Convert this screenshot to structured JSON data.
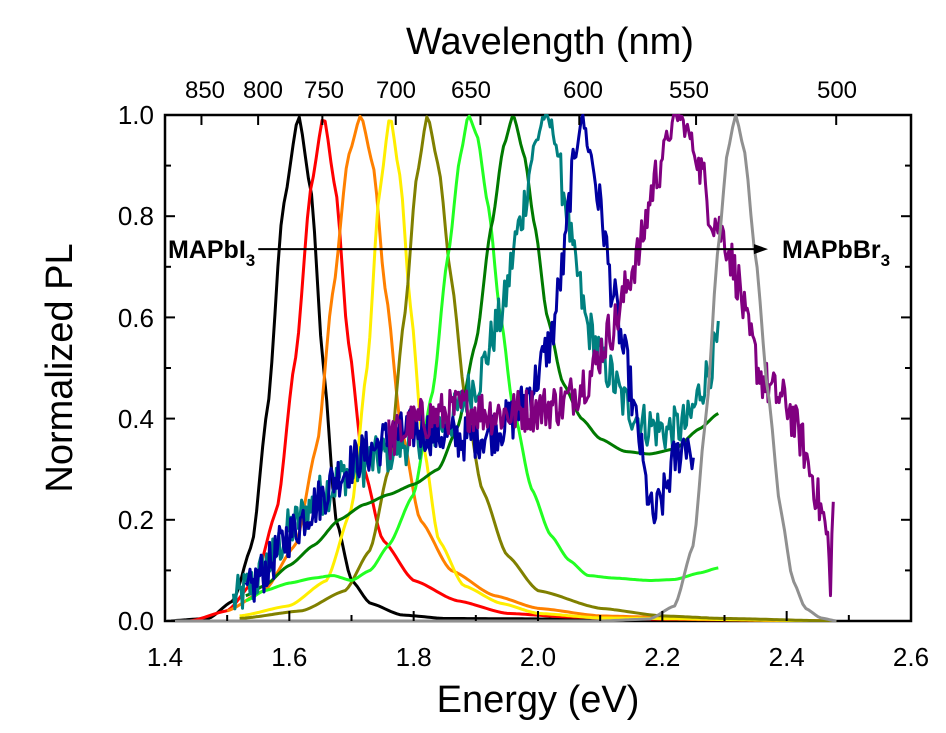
{
  "chart_data": {
    "type": "line",
    "title": "",
    "xlabel": "Energy (eV)",
    "ylabel": "Normalized PL",
    "top_xlabel": "Wavelength (nm)",
    "xlim": [
      1.4,
      2.6
    ],
    "ylim": [
      0.0,
      1.0
    ],
    "x_ticks": [
      1.4,
      1.6,
      1.8,
      2.0,
      2.2,
      2.4,
      2.6
    ],
    "x_tick_labels": [
      "1.4",
      "1.6",
      "1.8",
      "2.0",
      "2.2",
      "2.4",
      "2.6"
    ],
    "y_ticks": [
      0.0,
      0.2,
      0.4,
      0.6,
      0.8,
      1.0
    ],
    "y_tick_labels": [
      "0.0",
      "0.2",
      "0.4",
      "0.6",
      "0.8",
      "1.0"
    ],
    "wavelength_ticks": [
      850,
      800,
      750,
      700,
      650,
      600,
      550,
      500
    ],
    "wavelength_tick_labels": [
      "850",
      "800",
      "750",
      "700",
      "650",
      "600",
      "550",
      "500"
    ],
    "annotation": {
      "left": {
        "main": "MAPbI",
        "sub": "3"
      },
      "right": {
        "main": "MAPbBr",
        "sub": "3"
      },
      "y": 0.735,
      "x_start": 1.55,
      "x_end": 2.37
    },
    "series": [
      {
        "name": "black",
        "color": "#000000",
        "kind": "peak",
        "center": 1.615,
        "width_left": 0.05,
        "width_right": 0.045,
        "noise": 0,
        "points": [
          [
            1.4,
            0.0
          ],
          [
            1.47,
            0.005
          ],
          [
            1.51,
            0.04
          ],
          [
            1.54,
            0.15
          ],
          [
            1.565,
            0.42
          ],
          [
            1.59,
            0.82
          ],
          [
            1.615,
            1.0
          ],
          [
            1.635,
            0.85
          ],
          [
            1.655,
            0.5
          ],
          [
            1.675,
            0.2
          ],
          [
            1.7,
            0.08
          ],
          [
            1.73,
            0.035
          ],
          [
            1.78,
            0.012
          ],
          [
            1.85,
            0.005
          ],
          [
            2.48,
            0.0
          ]
        ]
      },
      {
        "name": "red",
        "color": "#ff0000",
        "kind": "peak",
        "points": [
          [
            1.44,
            0.0
          ],
          [
            1.5,
            0.02
          ],
          [
            1.545,
            0.08
          ],
          [
            1.58,
            0.22
          ],
          [
            1.61,
            0.52
          ],
          [
            1.635,
            0.86
          ],
          [
            1.655,
            1.0
          ],
          [
            1.675,
            0.85
          ],
          [
            1.695,
            0.55
          ],
          [
            1.72,
            0.3
          ],
          [
            1.75,
            0.16
          ],
          [
            1.8,
            0.08
          ],
          [
            1.87,
            0.04
          ],
          [
            1.95,
            0.015
          ],
          [
            2.05,
            0.008
          ],
          [
            2.15,
            0.004
          ],
          [
            2.48,
            0.0
          ]
        ]
      },
      {
        "name": "orange",
        "color": "#ff8000",
        "kind": "peak",
        "points": [
          [
            1.5,
            0.02
          ],
          [
            1.56,
            0.06
          ],
          [
            1.61,
            0.15
          ],
          [
            1.645,
            0.35
          ],
          [
            1.67,
            0.65
          ],
          [
            1.695,
            0.92
          ],
          [
            1.715,
            1.0
          ],
          [
            1.735,
            0.9
          ],
          [
            1.755,
            0.65
          ],
          [
            1.78,
            0.38
          ],
          [
            1.81,
            0.2
          ],
          [
            1.86,
            0.1
          ],
          [
            1.93,
            0.05
          ],
          [
            2.0,
            0.025
          ],
          [
            2.1,
            0.01
          ],
          [
            2.3,
            0.003
          ],
          [
            2.48,
            0.0
          ]
        ]
      },
      {
        "name": "yellow",
        "color": "#ffee00",
        "kind": "peak",
        "points": [
          [
            1.52,
            0.01
          ],
          [
            1.6,
            0.03
          ],
          [
            1.66,
            0.08
          ],
          [
            1.7,
            0.22
          ],
          [
            1.725,
            0.5
          ],
          [
            1.745,
            0.85
          ],
          [
            1.762,
            1.0
          ],
          [
            1.778,
            0.88
          ],
          [
            1.795,
            0.62
          ],
          [
            1.815,
            0.35
          ],
          [
            1.84,
            0.16
          ],
          [
            1.88,
            0.07
          ],
          [
            1.94,
            0.035
          ],
          [
            2.0,
            0.015
          ],
          [
            2.1,
            0.006
          ],
          [
            2.48,
            0.0
          ]
        ]
      },
      {
        "name": "olive",
        "color": "#808000",
        "kind": "peak",
        "points": [
          [
            1.52,
            0.005
          ],
          [
            1.62,
            0.02
          ],
          [
            1.69,
            0.06
          ],
          [
            1.73,
            0.14
          ],
          [
            1.76,
            0.3
          ],
          [
            1.785,
            0.6
          ],
          [
            1.805,
            0.88
          ],
          [
            1.822,
            1.0
          ],
          [
            1.84,
            0.9
          ],
          [
            1.86,
            0.68
          ],
          [
            1.885,
            0.42
          ],
          [
            1.91,
            0.26
          ],
          [
            1.95,
            0.13
          ],
          [
            2.0,
            0.06
          ],
          [
            2.1,
            0.025
          ],
          [
            2.2,
            0.01
          ],
          [
            2.3,
            0.005
          ],
          [
            2.48,
            0.0
          ]
        ]
      },
      {
        "name": "lime",
        "color": "#22ff22",
        "kind": "peak",
        "points": [
          [
            1.53,
            0.04
          ],
          [
            1.56,
            0.06
          ],
          [
            1.6,
            0.075
          ],
          [
            1.64,
            0.085
          ],
          [
            1.67,
            0.09
          ],
          [
            1.7,
            0.08
          ],
          [
            1.73,
            0.1
          ],
          [
            1.76,
            0.15
          ],
          [
            1.8,
            0.25
          ],
          [
            1.83,
            0.45
          ],
          [
            1.855,
            0.72
          ],
          [
            1.875,
            0.92
          ],
          [
            1.888,
            1.0
          ],
          [
            1.902,
            0.96
          ],
          [
            1.92,
            0.82
          ],
          [
            1.94,
            0.6
          ],
          [
            1.96,
            0.42
          ],
          [
            1.99,
            0.26
          ],
          [
            2.02,
            0.17
          ],
          [
            2.05,
            0.12
          ],
          [
            2.08,
            0.09
          ],
          [
            2.12,
            0.085
          ],
          [
            2.18,
            0.08
          ],
          [
            2.22,
            0.082
          ],
          [
            2.26,
            0.095
          ],
          [
            2.29,
            0.105
          ]
        ]
      },
      {
        "name": "green",
        "color": "#007a00",
        "kind": "peak",
        "points": [
          [
            1.53,
            0.05
          ],
          [
            1.56,
            0.07
          ],
          [
            1.6,
            0.11
          ],
          [
            1.64,
            0.15
          ],
          [
            1.68,
            0.2
          ],
          [
            1.72,
            0.23
          ],
          [
            1.76,
            0.25
          ],
          [
            1.8,
            0.27
          ],
          [
            1.84,
            0.3
          ],
          [
            1.87,
            0.38
          ],
          [
            1.9,
            0.55
          ],
          [
            1.925,
            0.78
          ],
          [
            1.945,
            0.94
          ],
          [
            1.96,
            1.0
          ],
          [
            1.978,
            0.92
          ],
          [
            1.995,
            0.78
          ],
          [
            2.015,
            0.6
          ],
          [
            2.04,
            0.47
          ],
          [
            2.07,
            0.4
          ],
          [
            2.1,
            0.36
          ],
          [
            2.14,
            0.335
          ],
          [
            2.18,
            0.33
          ],
          [
            2.22,
            0.34
          ],
          [
            2.26,
            0.38
          ],
          [
            2.29,
            0.41
          ]
        ]
      },
      {
        "name": "teal",
        "color": "#008080",
        "kind": "noisy",
        "points": [
          [
            1.51,
            0.04
          ],
          [
            1.54,
            0.07
          ],
          [
            1.57,
            0.12
          ],
          [
            1.6,
            0.18
          ],
          [
            1.63,
            0.22
          ],
          [
            1.66,
            0.26
          ],
          [
            1.7,
            0.3
          ],
          [
            1.74,
            0.32
          ],
          [
            1.78,
            0.35
          ],
          [
            1.82,
            0.37
          ],
          [
            1.86,
            0.4
          ],
          [
            1.9,
            0.47
          ],
          [
            1.94,
            0.6
          ],
          [
            1.97,
            0.78
          ],
          [
            1.995,
            0.94
          ],
          [
            2.01,
            1.0
          ],
          [
            2.025,
            0.97
          ],
          [
            2.04,
            0.86
          ],
          [
            2.06,
            0.7
          ],
          [
            2.08,
            0.58
          ],
          [
            2.11,
            0.5
          ],
          [
            2.14,
            0.43
          ],
          [
            2.17,
            0.39
          ],
          [
            2.21,
            0.375
          ],
          [
            2.24,
            0.39
          ],
          [
            2.27,
            0.48
          ],
          [
            2.29,
            0.55
          ]
        ]
      },
      {
        "name": "navy",
        "color": "#0000a0",
        "kind": "noisy",
        "points": [
          [
            1.53,
            0.05
          ],
          [
            1.56,
            0.1
          ],
          [
            1.6,
            0.17
          ],
          [
            1.64,
            0.23
          ],
          [
            1.68,
            0.29
          ],
          [
            1.72,
            0.33
          ],
          [
            1.76,
            0.36
          ],
          [
            1.8,
            0.38
          ],
          [
            1.84,
            0.37
          ],
          [
            1.88,
            0.36
          ],
          [
            1.92,
            0.37
          ],
          [
            1.96,
            0.4
          ],
          [
            1.99,
            0.46
          ],
          [
            2.02,
            0.55
          ],
          [
            2.04,
            0.7
          ],
          [
            2.055,
            0.88
          ],
          [
            2.07,
            1.0
          ],
          [
            2.085,
            0.92
          ],
          [
            2.1,
            0.82
          ],
          [
            2.12,
            0.65
          ],
          [
            2.14,
            0.52
          ],
          [
            2.16,
            0.38
          ],
          [
            2.175,
            0.26
          ],
          [
            2.185,
            0.2
          ],
          [
            2.2,
            0.24
          ],
          [
            2.22,
            0.32
          ],
          [
            2.24,
            0.36
          ],
          [
            2.25,
            0.32
          ]
        ]
      },
      {
        "name": "purple",
        "color": "#800080",
        "kind": "noisy",
        "points": [
          [
            1.76,
            0.36
          ],
          [
            1.82,
            0.4
          ],
          [
            1.88,
            0.42
          ],
          [
            1.94,
            0.41
          ],
          [
            2.0,
            0.42
          ],
          [
            2.04,
            0.43
          ],
          [
            2.08,
            0.48
          ],
          [
            2.12,
            0.58
          ],
          [
            2.16,
            0.72
          ],
          [
            2.19,
            0.88
          ],
          [
            2.21,
            0.96
          ],
          [
            2.225,
            1.0
          ],
          [
            2.24,
            0.97
          ],
          [
            2.26,
            0.9
          ],
          [
            2.28,
            0.8
          ],
          [
            2.3,
            0.76
          ],
          [
            2.32,
            0.68
          ],
          [
            2.34,
            0.56
          ],
          [
            2.36,
            0.48
          ],
          [
            2.38,
            0.45
          ],
          [
            2.4,
            0.43
          ],
          [
            2.42,
            0.37
          ],
          [
            2.44,
            0.29
          ],
          [
            2.455,
            0.22
          ],
          [
            2.465,
            0.17
          ],
          [
            2.47,
            0.08
          ],
          [
            2.475,
            0.22
          ]
        ]
      },
      {
        "name": "gray",
        "color": "#909090",
        "kind": "peak",
        "points": [
          [
            1.4,
            0.0
          ],
          [
            2.1,
            0.0
          ],
          [
            2.18,
            0.004
          ],
          [
            2.22,
            0.03
          ],
          [
            2.25,
            0.15
          ],
          [
            2.27,
            0.4
          ],
          [
            2.29,
            0.74
          ],
          [
            2.305,
            0.93
          ],
          [
            2.318,
            1.0
          ],
          [
            2.332,
            0.93
          ],
          [
            2.35,
            0.72
          ],
          [
            2.37,
            0.45
          ],
          [
            2.39,
            0.22
          ],
          [
            2.41,
            0.08
          ],
          [
            2.43,
            0.025
          ],
          [
            2.455,
            0.006
          ],
          [
            2.48,
            0.0
          ]
        ]
      }
    ]
  }
}
